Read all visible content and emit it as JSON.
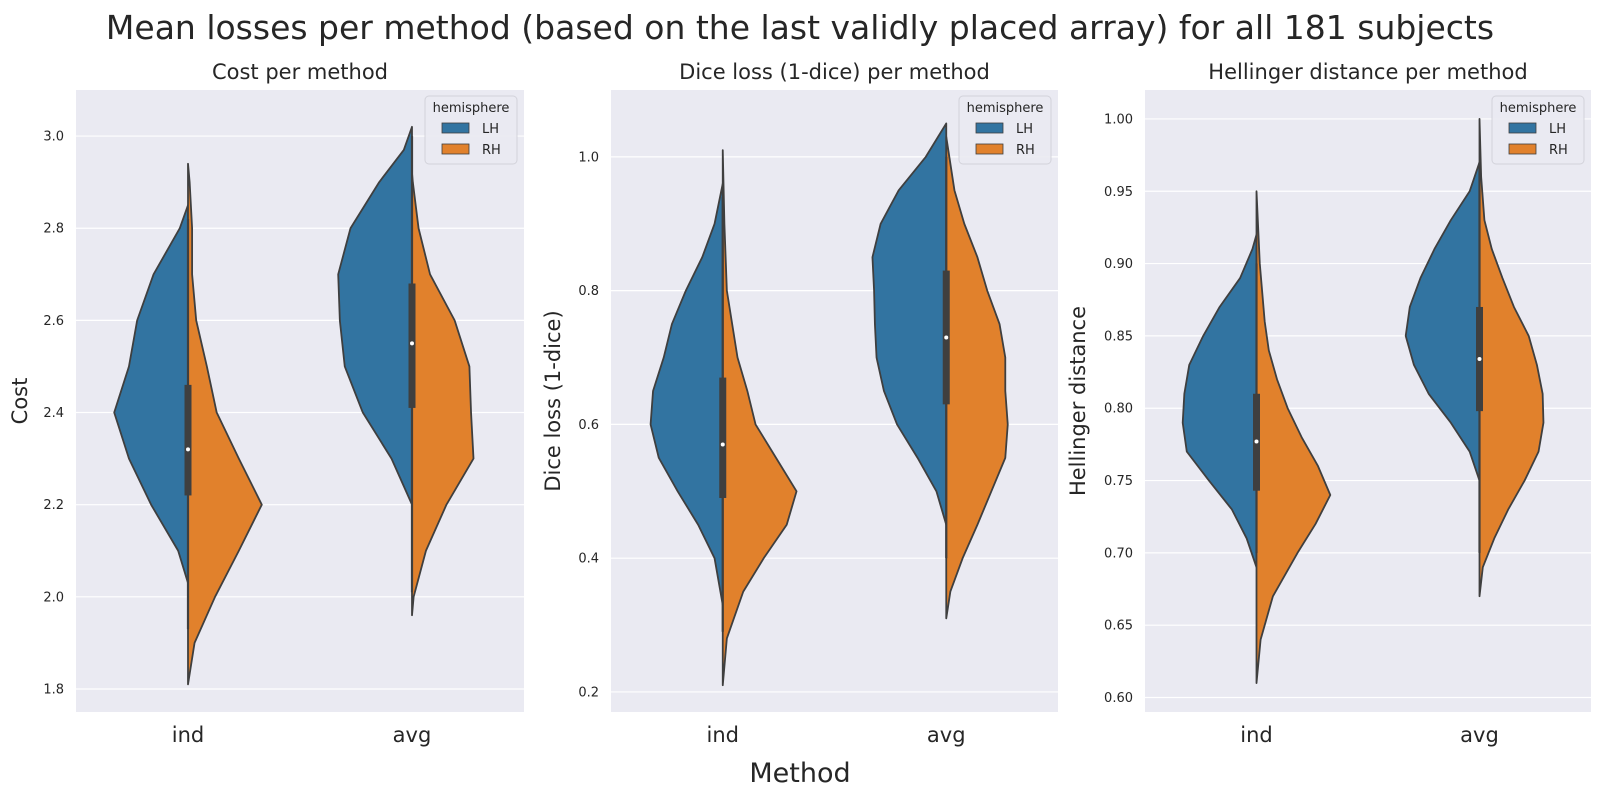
{
  "figure": {
    "suptitle": "Mean losses per method (based on the last validly placed array) for all 181 subjects",
    "supxlabel": "Method",
    "legend_title": "hemisphere",
    "colors": {
      "LH": "#3274a1",
      "RH": "#e1812c",
      "inner": "#3f3f3f"
    }
  },
  "chart_data": [
    {
      "type": "violin",
      "title": "Cost per method",
      "ylabel": "Cost",
      "xlabel": "",
      "categories": [
        "ind",
        "avg"
      ],
      "hue": [
        "LH",
        "RH"
      ],
      "legend_title": "hemisphere",
      "legend_location": "upper right",
      "ylim": [
        1.75,
        3.1
      ],
      "yticks": [
        1.8,
        2.0,
        2.2,
        2.4,
        2.6,
        2.8,
        3.0
      ],
      "ytick_labels": [
        "1.8",
        "2.0",
        "2.2",
        "2.4",
        "2.6",
        "2.8",
        "3.0"
      ],
      "violins": [
        {
          "category": "ind",
          "hue": "LH",
          "min": 2.03,
          "max": 2.85,
          "density": [
            [
              2.03,
              0
            ],
            [
              2.1,
              0.12
            ],
            [
              2.2,
              0.45
            ],
            [
              2.3,
              0.72
            ],
            [
              2.4,
              0.9
            ],
            [
              2.5,
              0.72
            ],
            [
              2.6,
              0.62
            ],
            [
              2.7,
              0.42
            ],
            [
              2.8,
              0.1
            ],
            [
              2.85,
              0
            ]
          ]
        },
        {
          "category": "ind",
          "hue": "RH",
          "min": 1.81,
          "max": 2.94,
          "density": [
            [
              1.81,
              0
            ],
            [
              1.9,
              0.08
            ],
            [
              2.0,
              0.33
            ],
            [
              2.1,
              0.62
            ],
            [
              2.2,
              0.9
            ],
            [
              2.3,
              0.62
            ],
            [
              2.4,
              0.35
            ],
            [
              2.5,
              0.23
            ],
            [
              2.6,
              0.1
            ],
            [
              2.7,
              0.05
            ],
            [
              2.8,
              0.05
            ],
            [
              2.9,
              0.02
            ],
            [
              2.94,
              0
            ]
          ]
        },
        {
          "category": "avg",
          "hue": "LH",
          "min": 2.2,
          "max": 3.02,
          "density": [
            [
              2.2,
              0
            ],
            [
              2.3,
              0.25
            ],
            [
              2.4,
              0.6
            ],
            [
              2.5,
              0.82
            ],
            [
              2.6,
              0.88
            ],
            [
              2.7,
              0.9
            ],
            [
              2.8,
              0.75
            ],
            [
              2.9,
              0.4
            ],
            [
              2.97,
              0.1
            ],
            [
              3.02,
              0
            ]
          ]
        },
        {
          "category": "avg",
          "hue": "RH",
          "min": 1.96,
          "max": 2.92,
          "density": [
            [
              1.96,
              0
            ],
            [
              2.0,
              0.02
            ],
            [
              2.1,
              0.17
            ],
            [
              2.2,
              0.42
            ],
            [
              2.3,
              0.75
            ],
            [
              2.4,
              0.72
            ],
            [
              2.5,
              0.7
            ],
            [
              2.6,
              0.52
            ],
            [
              2.7,
              0.22
            ],
            [
              2.8,
              0.08
            ],
            [
              2.9,
              0.01
            ],
            [
              2.92,
              0
            ]
          ]
        }
      ],
      "box": [
        {
          "category": "ind",
          "q1": 2.22,
          "median": 2.32,
          "q3": 2.46,
          "whisker_low": 1.93,
          "whisker_high": 2.82
        },
        {
          "category": "avg",
          "q1": 2.41,
          "median": 2.55,
          "q3": 2.68,
          "whisker_low": 2.01,
          "whisker_high": 3.0
        }
      ]
    },
    {
      "type": "violin",
      "title": "Dice loss (1-dice) per method",
      "ylabel": "Dice loss (1-dice)",
      "xlabel": "",
      "categories": [
        "ind",
        "avg"
      ],
      "hue": [
        "LH",
        "RH"
      ],
      "legend_title": "hemisphere",
      "legend_location": "upper right",
      "ylim": [
        0.17,
        1.1
      ],
      "yticks": [
        0.2,
        0.4,
        0.6,
        0.8,
        1.0
      ],
      "ytick_labels": [
        "0.2",
        "0.4",
        "0.6",
        "0.8",
        "1.0"
      ],
      "violins": [
        {
          "category": "ind",
          "hue": "LH",
          "min": 0.33,
          "max": 0.96,
          "density": [
            [
              0.33,
              0
            ],
            [
              0.4,
              0.1
            ],
            [
              0.45,
              0.3
            ],
            [
              0.5,
              0.55
            ],
            [
              0.55,
              0.78
            ],
            [
              0.6,
              0.88
            ],
            [
              0.65,
              0.85
            ],
            [
              0.7,
              0.72
            ],
            [
              0.75,
              0.62
            ],
            [
              0.8,
              0.45
            ],
            [
              0.85,
              0.25
            ],
            [
              0.9,
              0.1
            ],
            [
              0.96,
              0
            ]
          ]
        },
        {
          "category": "ind",
          "hue": "RH",
          "min": 0.21,
          "max": 1.01,
          "density": [
            [
              0.21,
              0
            ],
            [
              0.28,
              0.05
            ],
            [
              0.35,
              0.25
            ],
            [
              0.4,
              0.5
            ],
            [
              0.45,
              0.78
            ],
            [
              0.5,
              0.9
            ],
            [
              0.55,
              0.65
            ],
            [
              0.6,
              0.4
            ],
            [
              0.65,
              0.3
            ],
            [
              0.7,
              0.18
            ],
            [
              0.8,
              0.05
            ],
            [
              0.9,
              0.02
            ],
            [
              1.01,
              0
            ]
          ]
        },
        {
          "category": "avg",
          "hue": "LH",
          "min": 0.45,
          "max": 1.05,
          "density": [
            [
              0.45,
              0
            ],
            [
              0.5,
              0.12
            ],
            [
              0.55,
              0.35
            ],
            [
              0.6,
              0.6
            ],
            [
              0.65,
              0.76
            ],
            [
              0.7,
              0.85
            ],
            [
              0.75,
              0.87
            ],
            [
              0.8,
              0.88
            ],
            [
              0.85,
              0.9
            ],
            [
              0.9,
              0.8
            ],
            [
              0.95,
              0.58
            ],
            [
              1.0,
              0.25
            ],
            [
              1.05,
              0
            ]
          ]
        },
        {
          "category": "avg",
          "hue": "RH",
          "min": 0.31,
          "max": 1.03,
          "density": [
            [
              0.31,
              0
            ],
            [
              0.35,
              0.05
            ],
            [
              0.4,
              0.2
            ],
            [
              0.45,
              0.38
            ],
            [
              0.5,
              0.55
            ],
            [
              0.55,
              0.72
            ],
            [
              0.6,
              0.75
            ],
            [
              0.65,
              0.72
            ],
            [
              0.7,
              0.72
            ],
            [
              0.75,
              0.65
            ],
            [
              0.8,
              0.5
            ],
            [
              0.85,
              0.38
            ],
            [
              0.9,
              0.22
            ],
            [
              0.95,
              0.1
            ],
            [
              1.03,
              0
            ]
          ]
        }
      ],
      "box": [
        {
          "category": "ind",
          "q1": 0.49,
          "median": 0.57,
          "q3": 0.67,
          "whisker_low": 0.29,
          "whisker_high": 0.94
        },
        {
          "category": "avg",
          "q1": 0.63,
          "median": 0.73,
          "q3": 0.83,
          "whisker_low": 0.4,
          "whisker_high": 1.0
        }
      ]
    },
    {
      "type": "violin",
      "title": "Hellinger distance per method",
      "ylabel": "Hellinger distance",
      "xlabel": "",
      "categories": [
        "ind",
        "avg"
      ],
      "hue": [
        "LH",
        "RH"
      ],
      "legend_title": "hemisphere",
      "legend_location": "upper right",
      "ylim": [
        0.59,
        1.02
      ],
      "yticks": [
        0.6,
        0.65,
        0.7,
        0.75,
        0.8,
        0.85,
        0.9,
        0.95,
        1.0
      ],
      "ytick_labels": [
        "0.60",
        "0.65",
        "0.70",
        "0.75",
        "0.80",
        "0.85",
        "0.90",
        "0.95",
        "1.00"
      ],
      "violins": [
        {
          "category": "ind",
          "hue": "LH",
          "min": 0.69,
          "max": 0.92,
          "density": [
            [
              0.69,
              0
            ],
            [
              0.71,
              0.12
            ],
            [
              0.73,
              0.3
            ],
            [
              0.75,
              0.58
            ],
            [
              0.77,
              0.85
            ],
            [
              0.79,
              0.9
            ],
            [
              0.81,
              0.88
            ],
            [
              0.83,
              0.82
            ],
            [
              0.85,
              0.65
            ],
            [
              0.87,
              0.45
            ],
            [
              0.89,
              0.2
            ],
            [
              0.91,
              0.05
            ],
            [
              0.92,
              0
            ]
          ]
        },
        {
          "category": "ind",
          "hue": "RH",
          "min": 0.61,
          "max": 0.95,
          "density": [
            [
              0.61,
              0
            ],
            [
              0.64,
              0.05
            ],
            [
              0.67,
              0.2
            ],
            [
              0.7,
              0.5
            ],
            [
              0.72,
              0.72
            ],
            [
              0.74,
              0.9
            ],
            [
              0.76,
              0.75
            ],
            [
              0.78,
              0.55
            ],
            [
              0.8,
              0.38
            ],
            [
              0.82,
              0.25
            ],
            [
              0.84,
              0.15
            ],
            [
              0.86,
              0.1
            ],
            [
              0.88,
              0.07
            ],
            [
              0.9,
              0.04
            ],
            [
              0.95,
              0
            ]
          ]
        },
        {
          "category": "avg",
          "hue": "LH",
          "min": 0.75,
          "max": 0.97,
          "density": [
            [
              0.75,
              0
            ],
            [
              0.77,
              0.12
            ],
            [
              0.79,
              0.35
            ],
            [
              0.81,
              0.62
            ],
            [
              0.83,
              0.8
            ],
            [
              0.85,
              0.9
            ],
            [
              0.87,
              0.85
            ],
            [
              0.89,
              0.72
            ],
            [
              0.91,
              0.55
            ],
            [
              0.93,
              0.35
            ],
            [
              0.95,
              0.12
            ],
            [
              0.97,
              0
            ]
          ]
        },
        {
          "category": "avg",
          "hue": "RH",
          "min": 0.67,
          "max": 1.0,
          "density": [
            [
              0.67,
              0
            ],
            [
              0.69,
              0.04
            ],
            [
              0.71,
              0.18
            ],
            [
              0.73,
              0.35
            ],
            [
              0.75,
              0.55
            ],
            [
              0.77,
              0.72
            ],
            [
              0.79,
              0.78
            ],
            [
              0.81,
              0.77
            ],
            [
              0.83,
              0.7
            ],
            [
              0.85,
              0.6
            ],
            [
              0.87,
              0.42
            ],
            [
              0.89,
              0.28
            ],
            [
              0.91,
              0.15
            ],
            [
              0.93,
              0.06
            ],
            [
              0.96,
              0.02
            ],
            [
              1.0,
              0
            ]
          ]
        }
      ],
      "box": [
        {
          "category": "ind",
          "q1": 0.743,
          "median": 0.777,
          "q3": 0.81,
          "whisker_low": 0.7,
          "whisker_high": 0.9
        },
        {
          "category": "avg",
          "q1": 0.798,
          "median": 0.834,
          "q3": 0.87,
          "whisker_low": 0.7,
          "whisker_high": 0.97
        }
      ]
    }
  ]
}
